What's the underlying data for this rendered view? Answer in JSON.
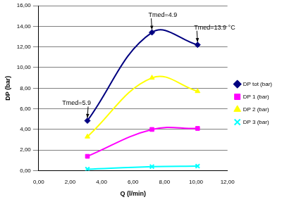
{
  "chart_data": {
    "type": "line",
    "x_label": "Q (l/min)",
    "y_label": "DP (bar)",
    "x": [
      3.1,
      7.2,
      10.1
    ],
    "series": [
      {
        "name": "DP tot (bar)",
        "color": "#000080",
        "marker": "diamond",
        "values": [
          4.85,
          13.4,
          12.2
        ]
      },
      {
        "name": "DP 1 (bar)",
        "color": "#ff00ff",
        "marker": "square",
        "values": [
          1.4,
          4.0,
          4.1
        ]
      },
      {
        "name": "DP 2 (bar)",
        "color": "#ffff00",
        "marker": "triangle",
        "values": [
          3.3,
          9.0,
          7.7
        ]
      },
      {
        "name": "DP 3 (bar)",
        "color": "#00ffff",
        "marker": "x",
        "values": [
          0.15,
          0.4,
          0.45
        ]
      }
    ],
    "annotations": [
      {
        "text": "Tmed=5.9",
        "x": 3.1,
        "y": 4.85
      },
      {
        "text": "Tmed=4.9",
        "x": 7.2,
        "y": 13.4
      },
      {
        "text": "Tmed=13.9 °C",
        "x": 10.1,
        "y": 12.2
      }
    ],
    "xlim": [
      0,
      12
    ],
    "xticks": [
      {
        "value": 0,
        "label": "0,00"
      },
      {
        "value": 2,
        "label": "2,00"
      },
      {
        "value": 4,
        "label": "4,00"
      },
      {
        "value": 6,
        "label": "6,00"
      },
      {
        "value": 8,
        "label": "8,00"
      },
      {
        "value": 10,
        "label": "10,00"
      },
      {
        "value": 12,
        "label": "12,00"
      }
    ],
    "ylim": [
      0,
      16
    ],
    "yticks": [
      {
        "value": 0,
        "label": "0,00"
      },
      {
        "value": 2,
        "label": "2,00"
      },
      {
        "value": 4,
        "label": "4,00"
      },
      {
        "value": 6,
        "label": "6,00"
      },
      {
        "value": 8,
        "label": "8,00"
      },
      {
        "value": 10,
        "label": "10,00"
      },
      {
        "value": 12,
        "label": "12,00"
      },
      {
        "value": 14,
        "label": "14,00"
      },
      {
        "value": 16,
        "label": "16,00"
      }
    ],
    "grid": true,
    "legend": "right"
  }
}
